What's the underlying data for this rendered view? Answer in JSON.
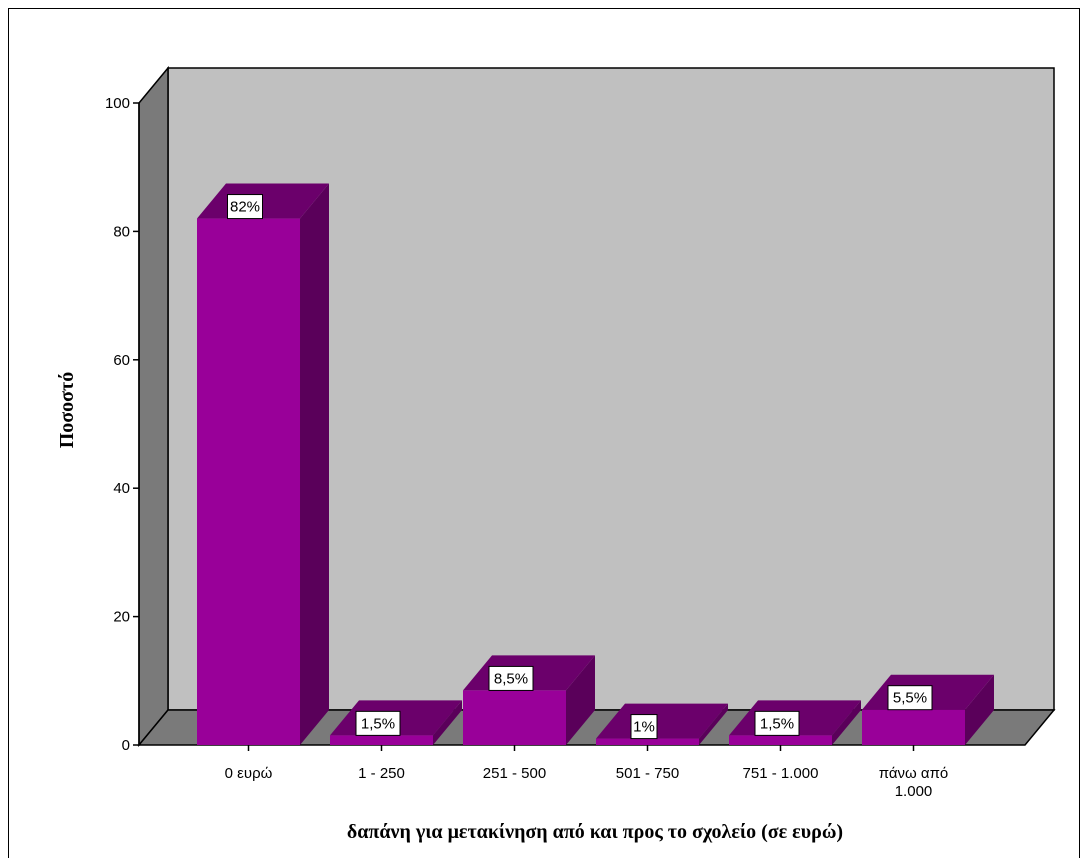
{
  "chart_data": {
    "type": "bar",
    "style": "3d",
    "categories": [
      [
        "0 ευρώ"
      ],
      [
        "1 - 250"
      ],
      [
        "251 - 500"
      ],
      [
        "501 - 750"
      ],
      [
        "751 - 1.000"
      ],
      [
        "πάνω από",
        "1.000"
      ]
    ],
    "values": [
      82,
      1.5,
      8.5,
      1,
      1.5,
      5.5
    ],
    "data_labels": [
      "82%",
      "1,5%",
      "8,5%",
      "1%",
      "1,5%",
      "5,5%"
    ],
    "xlabel": "δαπάνη για μετακίνηση από και προς το σχολείο (σε ευρώ)",
    "ylabel": "Ποσοστό",
    "ylim": [
      0,
      100
    ],
    "yticks": [
      0,
      20,
      40,
      60,
      80,
      100
    ],
    "grid": false,
    "colors": {
      "bar_front": "#990099",
      "bar_top": "#6b006b",
      "bar_side": "#5a005a",
      "back_wall": "#c0c0c0",
      "side_wall": "#7a7a7a",
      "floor": "#7a7a7a"
    }
  }
}
